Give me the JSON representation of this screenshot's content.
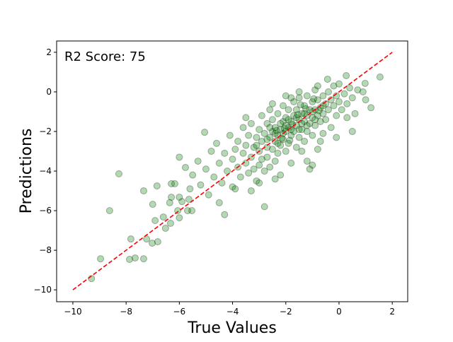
{
  "chart_data": {
    "type": "scatter",
    "title": "",
    "xlabel": "True Values",
    "ylabel": "Predictions",
    "annotation": "R2 Score: 75",
    "xlim": [
      -10.61,
      2.58
    ],
    "ylim": [
      -10.6,
      2.57
    ],
    "xticks": [
      -10,
      -8,
      -6,
      -4,
      -2,
      0,
      2
    ],
    "yticks": [
      -10,
      -8,
      -6,
      -4,
      -2,
      0,
      2
    ],
    "xtick_labels": [
      "−10",
      "−8",
      "−6",
      "−4",
      "−2",
      "0",
      "2"
    ],
    "ytick_labels": [
      "−10",
      "−8",
      "−6",
      "−4",
      "−2",
      "0",
      "2"
    ],
    "grid": false,
    "point_color": "#008000",
    "point_edge_color": "#000000",
    "point_alpha": 0.3,
    "reference_line": {
      "from": [
        -10,
        -10
      ],
      "to": [
        2,
        2
      ],
      "color": "#ff0000",
      "style": "dashed"
    },
    "points": [
      [
        -9.3,
        -9.43
      ],
      [
        -8.96,
        -8.43
      ],
      [
        -8.62,
        -6.0
      ],
      [
        -8.27,
        -4.14
      ],
      [
        -7.87,
        -8.46
      ],
      [
        -7.66,
        -8.39
      ],
      [
        -7.34,
        -8.43
      ],
      [
        -7.82,
        -7.43
      ],
      [
        -7.23,
        -7.43
      ],
      [
        -7.02,
        -7.64
      ],
      [
        -6.81,
        -7.57
      ],
      [
        -7.34,
        -5.0
      ],
      [
        -7.0,
        -5.68
      ],
      [
        -6.91,
        -6.5
      ],
      [
        -6.84,
        -4.75
      ],
      [
        -6.6,
        -6.32
      ],
      [
        -6.52,
        -6.89
      ],
      [
        -6.33,
        -6.64
      ],
      [
        -6.3,
        -4.64
      ],
      [
        -6.17,
        -4.64
      ],
      [
        -6.3,
        -5.32
      ],
      [
        -6.36,
        -5.6
      ],
      [
        -6.0,
        -5.32
      ],
      [
        -6.0,
        -6.36
      ],
      [
        -6.06,
        -6.0
      ],
      [
        -5.53,
        -6.0
      ],
      [
        -5.69,
        -6.0
      ],
      [
        -5.9,
        -5.54
      ],
      [
        -5.64,
        -5.43
      ],
      [
        -5.77,
        -3.82
      ],
      [
        -5.0,
        -3.9
      ],
      [
        -4.8,
        -3.0
      ],
      [
        -4.7,
        -4.3
      ],
      [
        -4.6,
        -2.6
      ],
      [
        -4.5,
        -3.6
      ],
      [
        -4.4,
        -4.6
      ],
      [
        -4.3,
        -3.1
      ],
      [
        -4.2,
        -4.0
      ],
      [
        -4.1,
        -2.2
      ],
      [
        -4.0,
        -3.4
      ],
      [
        -4.0,
        -4.8
      ],
      [
        -3.9,
        -2.9
      ],
      [
        -3.8,
        -3.8
      ],
      [
        -3.8,
        -2.5
      ],
      [
        -3.7,
        -4.3
      ],
      [
        -3.6,
        -3.1
      ],
      [
        -3.6,
        -1.8
      ],
      [
        -3.5,
        -3.6
      ],
      [
        -3.5,
        -2.7
      ],
      [
        -3.4,
        -4.1
      ],
      [
        -3.4,
        -2.2
      ],
      [
        -3.3,
        -3.3
      ],
      [
        -3.3,
        -1.6
      ],
      [
        -3.2,
        -2.8
      ],
      [
        -3.2,
        -3.9
      ],
      [
        -3.1,
        -2.3
      ],
      [
        -3.1,
        -4.5
      ],
      [
        -3.0,
        -3.0
      ],
      [
        -3.0,
        -1.9
      ],
      [
        -3.0,
        -3.7
      ],
      [
        -2.9,
        -2.5
      ],
      [
        -2.9,
        -1.2
      ],
      [
        -2.9,
        -3.4
      ],
      [
        -2.8,
        -2.1
      ],
      [
        -2.8,
        -4.0
      ],
      [
        -2.8,
        -5.8
      ],
      [
        -2.7,
        -2.8
      ],
      [
        -2.7,
        -1.6
      ],
      [
        -2.7,
        -3.3
      ],
      [
        -2.6,
        -2.3
      ],
      [
        -2.6,
        -0.9
      ],
      [
        -2.6,
        -3.8
      ],
      [
        -2.5,
        -2.0
      ],
      [
        -2.5,
        -2.9
      ],
      [
        -2.5,
        -1.4
      ],
      [
        -2.4,
        -2.5
      ],
      [
        -2.4,
        -3.5
      ],
      [
        -2.4,
        -1.8
      ],
      [
        -2.3,
        -2.2
      ],
      [
        -2.3,
        -1.1
      ],
      [
        -2.3,
        -3.1
      ],
      [
        -2.2,
        -1.9
      ],
      [
        -2.2,
        -2.7
      ],
      [
        -2.2,
        -4.2
      ],
      [
        -2.1,
        -1.5
      ],
      [
        -2.1,
        -2.4
      ],
      [
        -2.1,
        -0.7
      ],
      [
        -2.0,
        -2.0
      ],
      [
        -2.0,
        -3.0
      ],
      [
        -2.0,
        -1.3
      ],
      [
        -1.9,
        -1.8
      ],
      [
        -1.9,
        -2.6
      ],
      [
        -1.9,
        -0.9
      ],
      [
        -1.8,
        -1.5
      ],
      [
        -1.8,
        -2.2
      ],
      [
        -1.8,
        -3.6
      ],
      [
        -1.7,
        -1.2
      ],
      [
        -1.7,
        -2.0
      ],
      [
        -1.7,
        -0.5
      ],
      [
        -1.6,
        -1.7
      ],
      [
        -1.6,
        -2.8
      ],
      [
        -1.6,
        -0.9
      ],
      [
        -1.5,
        -1.4
      ],
      [
        -1.5,
        -2.3
      ],
      [
        -1.5,
        -0.3
      ],
      [
        -1.4,
        -1.1
      ],
      [
        -1.4,
        -1.9
      ],
      [
        -1.4,
        -3.0
      ],
      [
        -1.3,
        -1.5
      ],
      [
        -1.3,
        -0.7
      ],
      [
        -1.3,
        -2.5
      ],
      [
        -1.2,
        -1.2
      ],
      [
        -1.2,
        -0.2
      ],
      [
        -1.2,
        -2.0
      ],
      [
        -1.1,
        -0.9
      ],
      [
        -1.1,
        -1.6
      ],
      [
        -1.1,
        -3.9
      ],
      [
        -1.0,
        -1.3
      ],
      [
        -1.0,
        -0.5
      ],
      [
        -1.0,
        -2.2
      ],
      [
        -0.9,
        -0.9
      ],
      [
        -0.9,
        -1.7
      ],
      [
        -0.9,
        0.1
      ],
      [
        -0.8,
        -1.2
      ],
      [
        -0.8,
        -0.4
      ],
      [
        -0.8,
        -2.9
      ],
      [
        -0.7,
        -0.8
      ],
      [
        -0.7,
        -1.5
      ],
      [
        -0.6,
        -0.2
      ],
      [
        -0.6,
        -1.1
      ],
      [
        -0.6,
        -2.1
      ],
      [
        -0.5,
        -0.6
      ],
      [
        -0.5,
        -1.4
      ],
      [
        -0.4,
        0.0
      ],
      [
        -0.4,
        -0.9
      ],
      [
        -0.43,
        0.64
      ],
      [
        -0.3,
        -0.4
      ],
      [
        -0.3,
        -1.8
      ],
      [
        -0.2,
        -0.7
      ],
      [
        -0.2,
        0.3
      ],
      [
        -0.1,
        -1.2
      ],
      [
        -0.1,
        -0.2
      ],
      [
        0.0,
        -0.5
      ],
      [
        0.0,
        0.4
      ],
      [
        0.1,
        -0.9
      ],
      [
        0.2,
        -0.1
      ],
      [
        0.27,
        0.82
      ],
      [
        0.3,
        -0.6
      ],
      [
        0.4,
        0.2
      ],
      [
        0.5,
        -0.3
      ],
      [
        0.6,
        -1.1
      ],
      [
        0.7,
        0.1
      ],
      [
        0.9,
        0.0
      ],
      [
        0.98,
        0.43
      ],
      [
        1.0,
        -0.4
      ],
      [
        1.2,
        -0.8
      ],
      [
        1.54,
        0.75
      ],
      [
        0.3,
        -1.3
      ],
      [
        -5.5,
        -4.2
      ],
      [
        -5.3,
        -3.5
      ],
      [
        -5.2,
        -4.7
      ],
      [
        -5.05,
        -2.04
      ],
      [
        -6.0,
        -3.3
      ],
      [
        -5.6,
        -4.9
      ],
      [
        -4.9,
        -5.2
      ],
      [
        -4.5,
        -5.6
      ],
      [
        -4.3,
        -6.2
      ],
      [
        -3.9,
        -4.9
      ],
      [
        -3.3,
        -5.0
      ],
      [
        -3.0,
        -4.6
      ],
      [
        -2.4,
        -4.4
      ],
      [
        -1.2,
        -3.5
      ],
      [
        -1.0,
        -3.7
      ],
      [
        -0.7,
        -2.5
      ],
      [
        -0.1,
        -2.3
      ],
      [
        0.5,
        -2.0
      ],
      [
        -2.0,
        -0.2
      ],
      [
        -2.5,
        -0.6
      ],
      [
        -3.5,
        -1.3
      ],
      [
        -1.5,
        0.0
      ],
      [
        -0.8,
        0.3
      ],
      [
        -1.8,
        -0.3
      ],
      [
        -2.2,
        -1.6
      ],
      [
        -2.0,
        -1.7
      ],
      [
        -1.9,
        -1.4
      ],
      [
        -2.1,
        -2.1
      ],
      [
        -1.6,
        -1.3
      ],
      [
        -1.4,
        -1.6
      ],
      [
        -1.2,
        -1.7
      ],
      [
        -2.4,
        -2.1
      ],
      [
        -2.6,
        -1.8
      ],
      [
        -1.8,
        -1.9
      ],
      [
        -1.0,
        -1.0
      ],
      [
        -0.6,
        -0.7
      ],
      [
        -2.3,
        -2.6
      ],
      [
        -2.7,
        -2.4
      ],
      [
        -3.1,
        -2.7
      ],
      [
        -1.5,
        -1.9
      ],
      [
        -1.3,
        -1.1
      ],
      [
        -0.9,
        -1.4
      ],
      [
        -2.05,
        -1.85
      ],
      [
        -1.75,
        -1.65
      ],
      [
        -1.55,
        -1.15
      ],
      [
        -2.35,
        -1.95
      ],
      [
        -1.25,
        -0.85
      ],
      [
        -0.75,
        -0.95
      ],
      [
        -2.15,
        -2.35
      ],
      [
        -1.85,
        -2.45
      ],
      [
        -1.45,
        -0.65
      ],
      [
        -0.95,
        -0.35
      ]
    ]
  }
}
